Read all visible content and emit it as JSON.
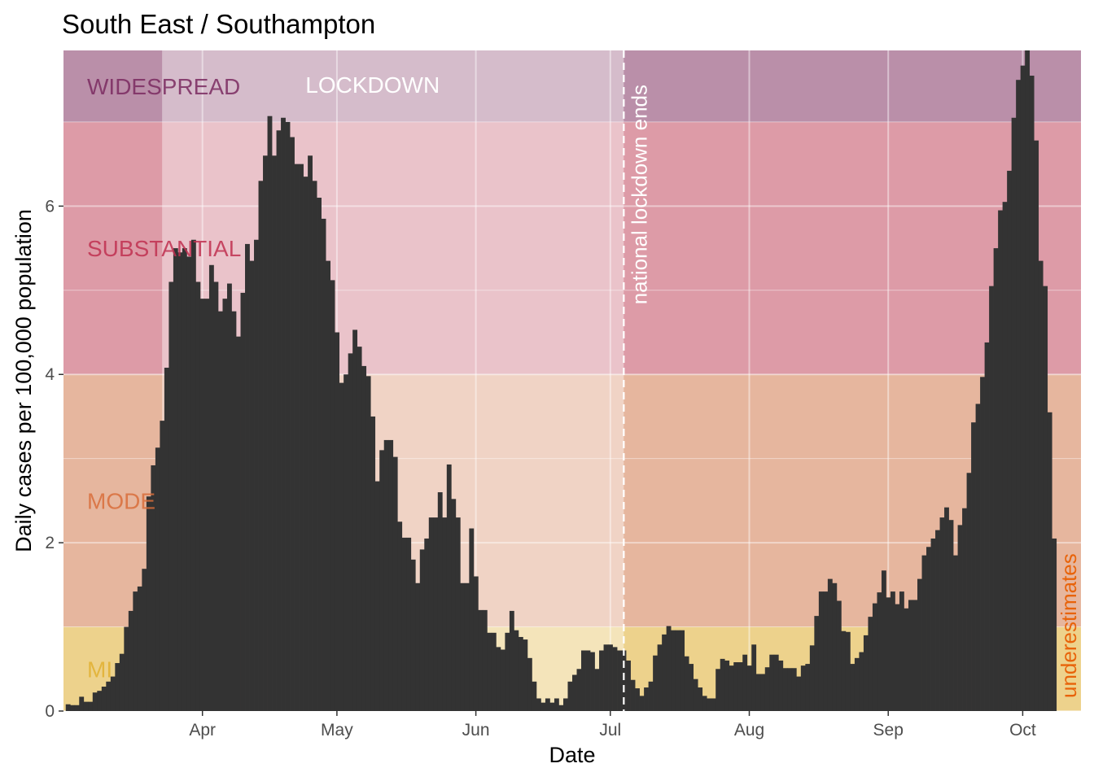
{
  "chart_data": {
    "type": "bar",
    "title": "South East / Southampton",
    "xlabel": "Date",
    "ylabel": "Daily cases per 100,000 population",
    "x_start": "2020-03-02",
    "xlim": [
      "2020-03-01",
      "2020-10-14"
    ],
    "ylim": [
      0,
      7.85
    ],
    "y_ticks": [
      0,
      2,
      4,
      6
    ],
    "x_ticks": [
      {
        "date": "2020-04-01",
        "label": "Apr"
      },
      {
        "date": "2020-05-01",
        "label": "May"
      },
      {
        "date": "2020-06-01",
        "label": "Jun"
      },
      {
        "date": "2020-07-01",
        "label": "Jul"
      },
      {
        "date": "2020-08-01",
        "label": "Aug"
      },
      {
        "date": "2020-09-01",
        "label": "Sep"
      },
      {
        "date": "2020-10-01",
        "label": "Oct"
      }
    ],
    "grid": true,
    "bar_color": "#333333",
    "bands": [
      {
        "name": "MILD",
        "label_visible": "MI",
        "y0": 0,
        "y1": 1,
        "color": "#e6c060",
        "label_color": "#e0b030"
      },
      {
        "name": "MODERATE",
        "label_visible": "MODE",
        "y0": 1,
        "y1": 4,
        "color": "#dd9a78",
        "label_color": "#d86d3a"
      },
      {
        "name": "SUBSTANTIAL",
        "label_visible": "SUBSTANTIAL",
        "y0": 4,
        "y1": 7,
        "color": "#d07585",
        "label_color": "#c03050"
      },
      {
        "name": "WIDESPREAD",
        "label_visible": "WIDESPREAD",
        "y0": 7,
        "y1": 7.85,
        "color": "#a06488",
        "label_color": "#7a2a60"
      }
    ],
    "lockdown": {
      "label": "LOCKDOWN",
      "start": "2020-03-23",
      "end": "2020-07-04",
      "color": "#ffffff"
    },
    "vline": {
      "label": "national lockdown ends",
      "date": "2020-07-04",
      "color": "#ffffff"
    },
    "underestimate": {
      "label": "underestimates",
      "color": "#e8630a"
    },
    "values": [
      0.08,
      0.07,
      0.07,
      0.17,
      0.11,
      0.11,
      0.22,
      0.24,
      0.29,
      0.35,
      0.41,
      0.57,
      0.68,
      1.0,
      1.19,
      1.42,
      1.48,
      1.69,
      2.55,
      2.92,
      3.13,
      3.45,
      4.08,
      5.1,
      5.5,
      5.45,
      5.5,
      5.4,
      5.6,
      5.1,
      4.9,
      4.9,
      5.3,
      5.1,
      4.75,
      4.9,
      5.08,
      4.75,
      4.45,
      4.97,
      5.55,
      5.35,
      5.6,
      6.3,
      6.6,
      7.07,
      6.6,
      6.9,
      7.05,
      7.0,
      6.82,
      6.5,
      6.5,
      6.35,
      6.6,
      6.3,
      6.1,
      5.85,
      5.35,
      5.12,
      4.5,
      3.9,
      4.0,
      4.25,
      4.53,
      4.33,
      4.1,
      3.98,
      3.5,
      2.73,
      3.1,
      3.22,
      3.22,
      3.02,
      2.25,
      2.06,
      2.06,
      1.8,
      1.52,
      1.92,
      2.05,
      2.3,
      2.3,
      2.6,
      2.3,
      2.93,
      2.52,
      2.3,
      1.52,
      1.52,
      2.17,
      1.6,
      1.2,
      1.2,
      0.93,
      0.93,
      0.76,
      0.73,
      0.93,
      1.19,
      0.96,
      0.88,
      0.85,
      0.63,
      0.35,
      0.15,
      0.1,
      0.15,
      0.1,
      0.15,
      0.07,
      0.15,
      0.35,
      0.43,
      0.5,
      0.72,
      0.72,
      0.7,
      0.5,
      0.72,
      0.79,
      0.79,
      0.76,
      0.72,
      0.72,
      0.6,
      0.37,
      0.27,
      0.18,
      0.28,
      0.35,
      0.66,
      0.79,
      0.91,
      1.01,
      0.96,
      0.96,
      0.96,
      0.65,
      0.56,
      0.38,
      0.28,
      0.18,
      0.15,
      0.15,
      0.5,
      0.62,
      0.6,
      0.54,
      0.58,
      0.58,
      0.67,
      0.54,
      0.79,
      0.44,
      0.44,
      0.52,
      0.67,
      0.67,
      0.6,
      0.51,
      0.51,
      0.51,
      0.41,
      0.54,
      0.56,
      0.78,
      1.13,
      1.42,
      1.42,
      1.57,
      1.52,
      1.31,
      0.95,
      0.94,
      0.56,
      0.63,
      0.7,
      0.9,
      1.12,
      1.28,
      1.41,
      1.67,
      1.35,
      1.42,
      1.27,
      1.42,
      1.22,
      1.32,
      1.32,
      1.57,
      1.85,
      1.95,
      2.05,
      2.15,
      2.3,
      2.42,
      2.27,
      1.85,
      2.21,
      2.41,
      2.83,
      3.43,
      3.65,
      3.97,
      4.38,
      5.05,
      5.5,
      5.95,
      6.05,
      6.42,
      7.05,
      7.5,
      7.67,
      7.88,
      7.55,
      6.78,
      5.35,
      5.05,
      3.55,
      2.05
    ]
  }
}
